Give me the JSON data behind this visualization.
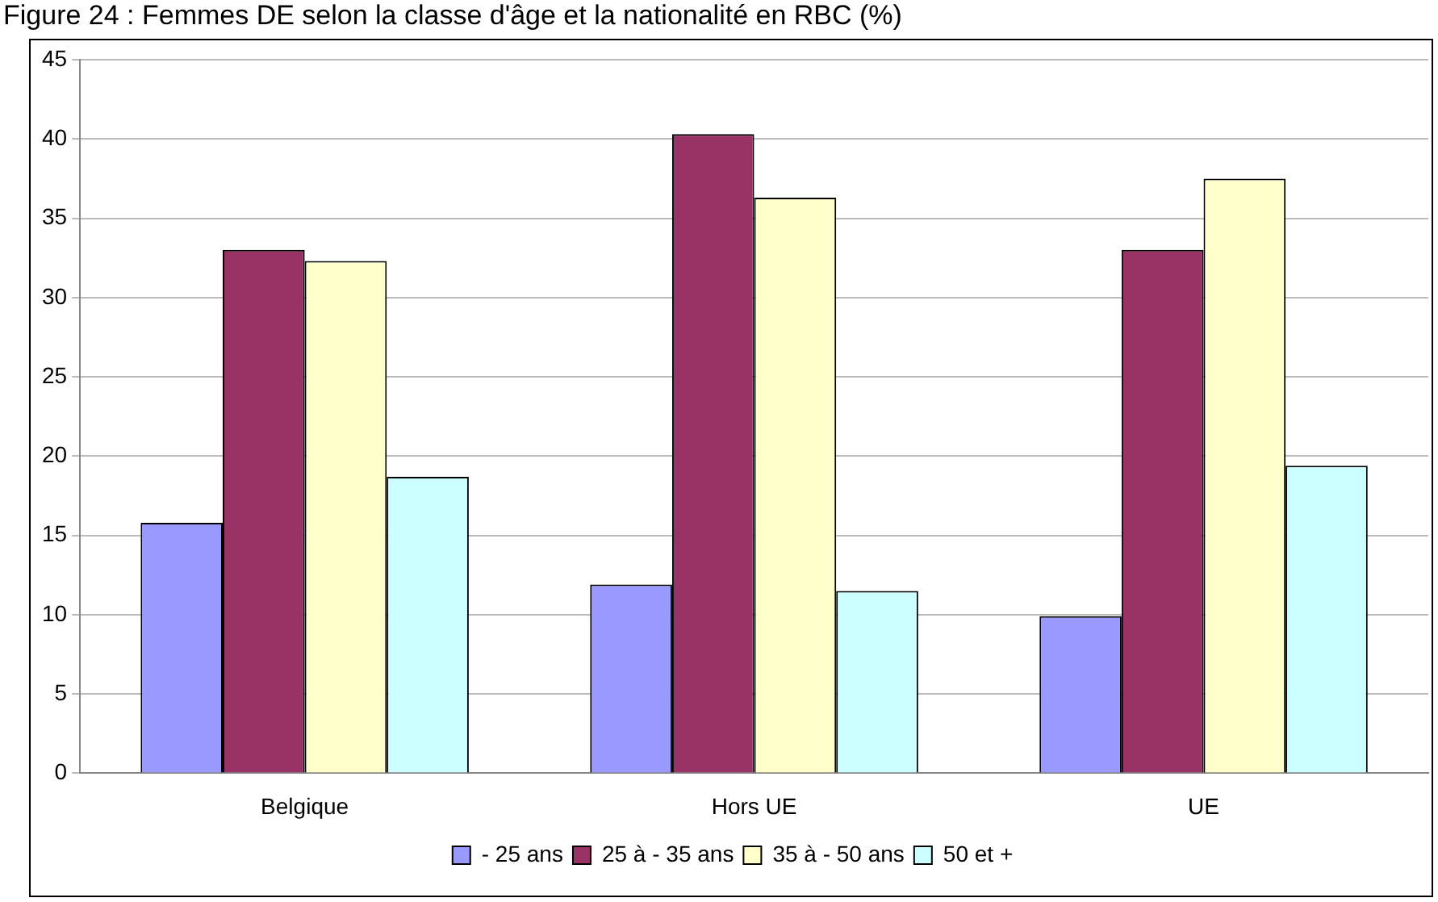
{
  "chart_data": {
    "type": "bar",
    "title": "Figure 24 : Femmes DE selon la classe d'âge et la nationalité en RBC (%)",
    "categories": [
      "Belgique",
      "Hors UE",
      "UE"
    ],
    "series": [
      {
        "name": "- 25 ans",
        "color": "#9999ff",
        "values": [
          15.8,
          11.9,
          9.9
        ]
      },
      {
        "name": "25 à - 35 ans",
        "color": "#993366",
        "values": [
          33.0,
          40.3,
          33.0
        ]
      },
      {
        "name": "35 à - 50 ans",
        "color": "#ffffcc",
        "values": [
          32.3,
          36.3,
          37.5
        ]
      },
      {
        "name": "50 et +",
        "color": "#ccffff",
        "values": [
          18.7,
          11.5,
          19.4
        ]
      }
    ],
    "ylim": [
      0,
      45
    ],
    "yticks": [
      0,
      5,
      10,
      15,
      20,
      25,
      30,
      35,
      40,
      45
    ],
    "grid": "y",
    "legend": "bottom"
  }
}
